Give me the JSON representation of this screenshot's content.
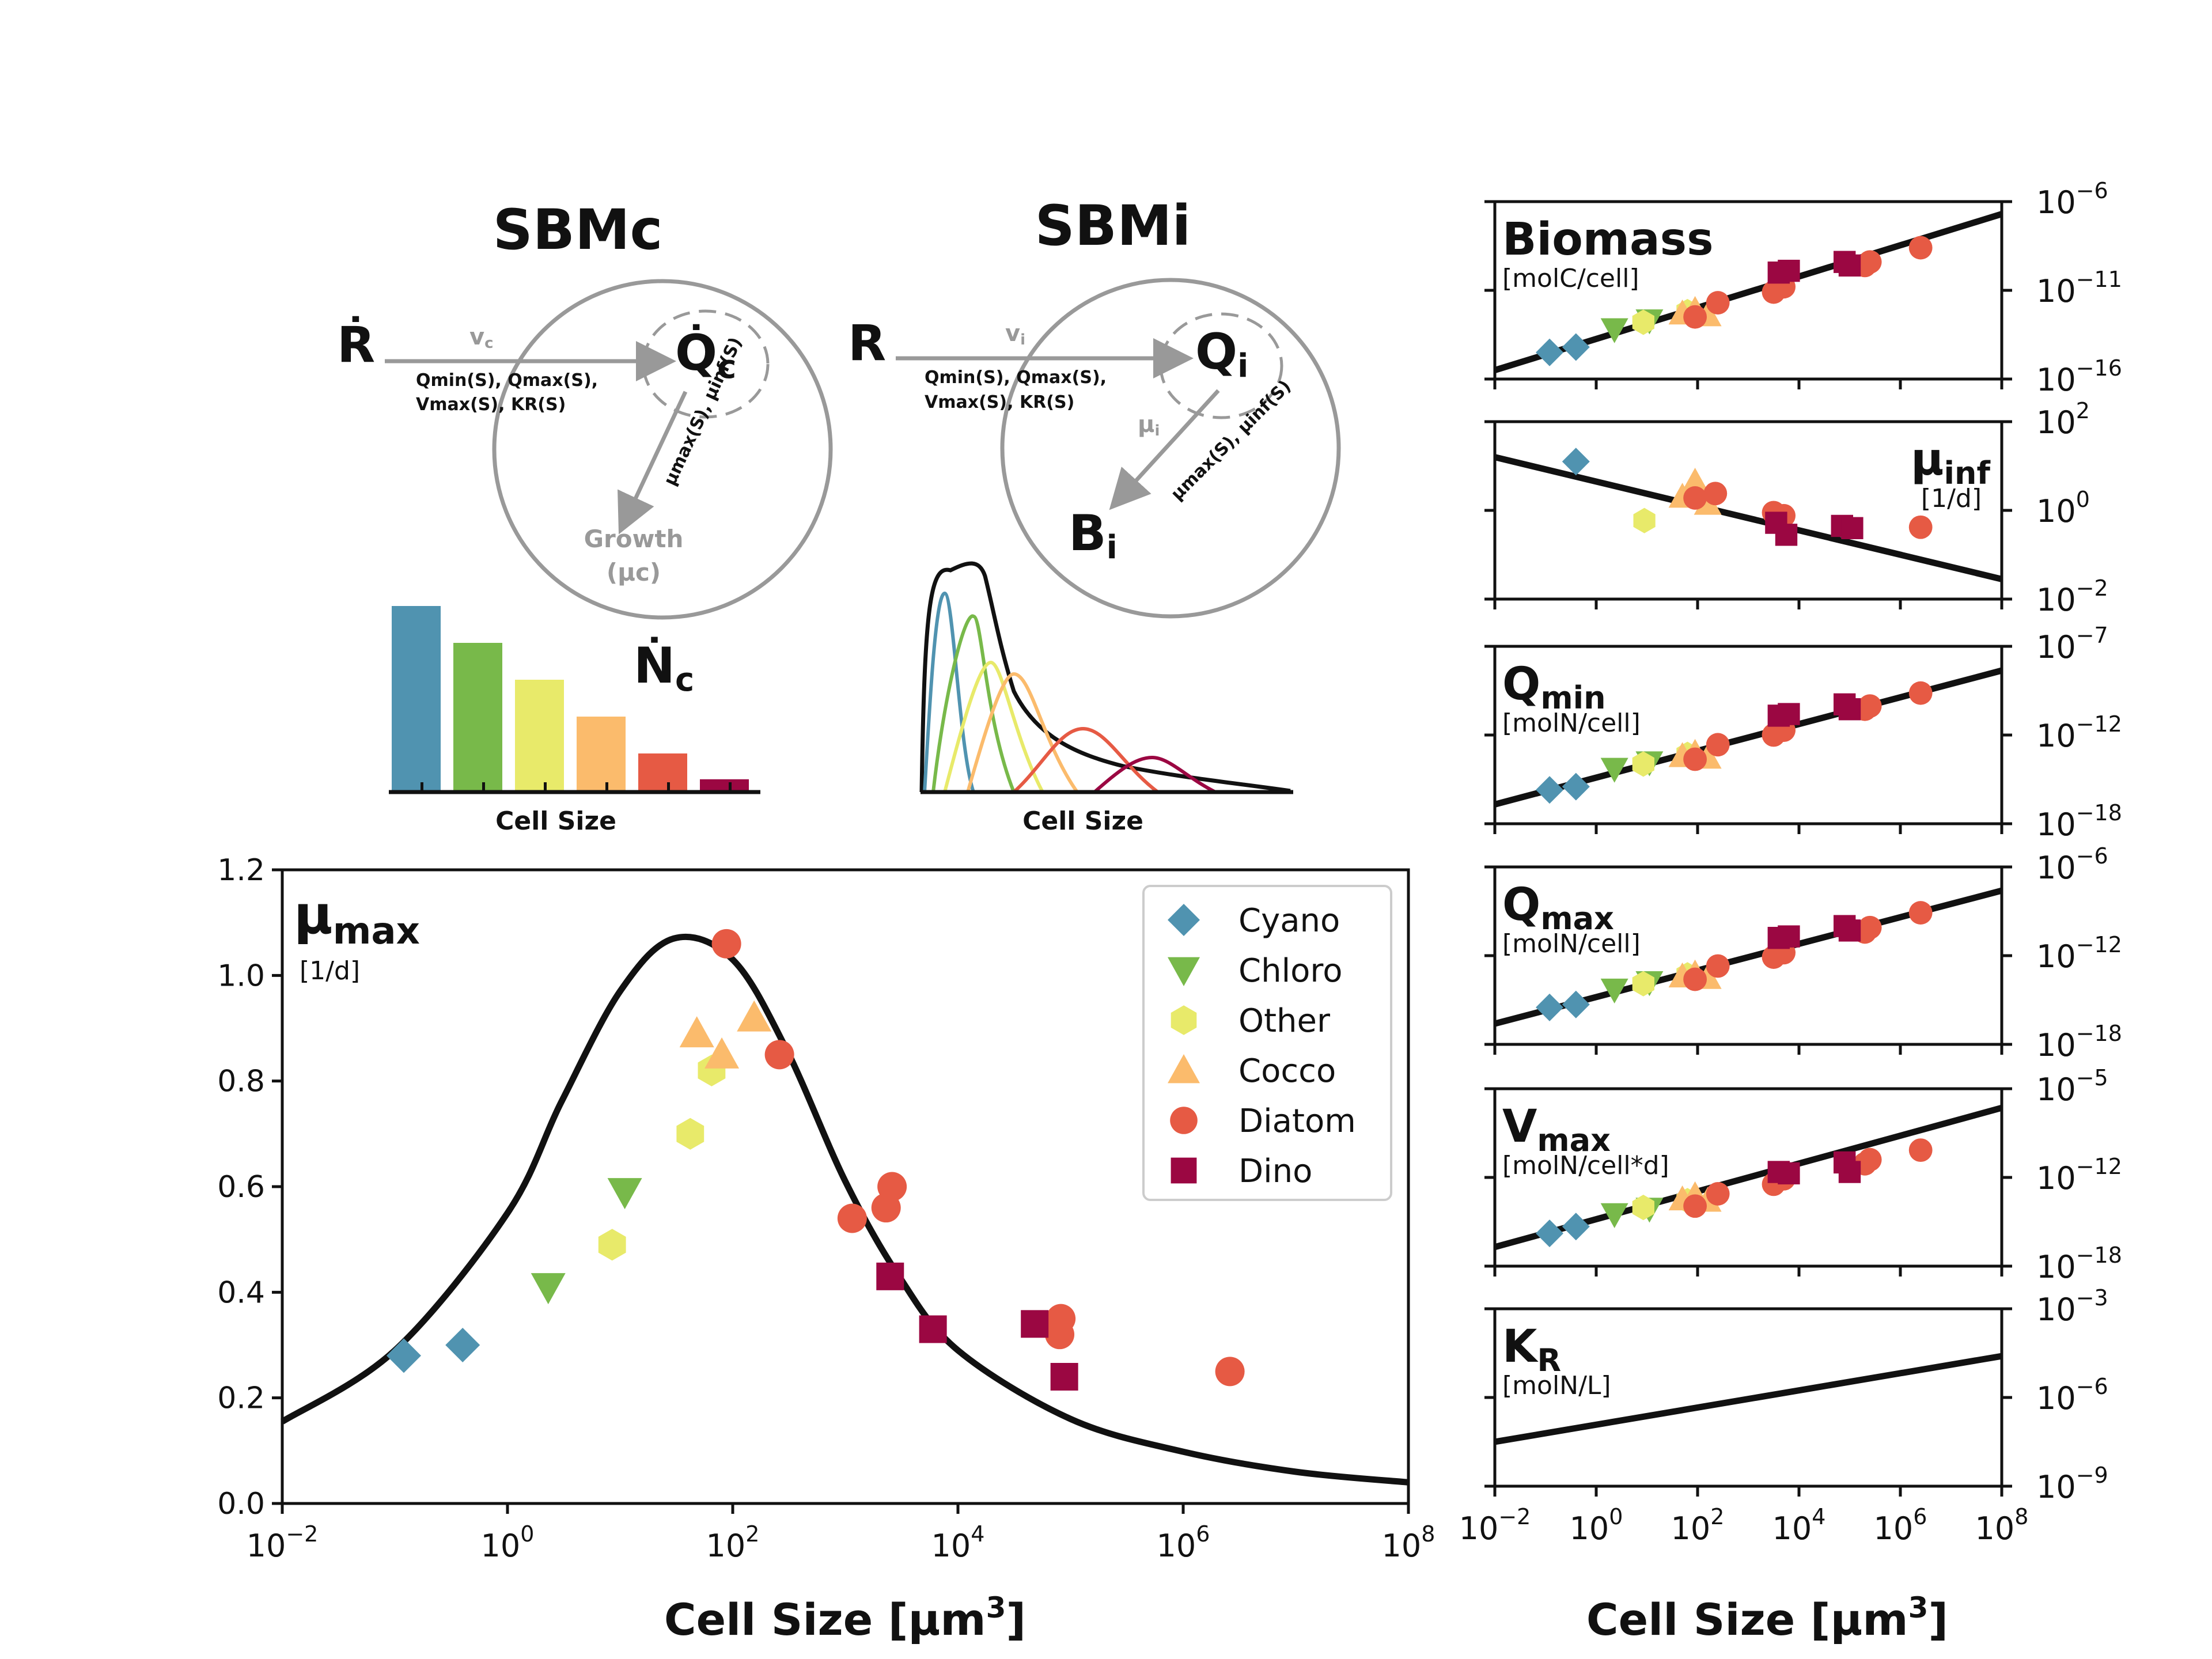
{
  "colors": {
    "Cyano": "#5093b0",
    "Chloro": "#78b94a",
    "Other": "#e8ea6a",
    "Cocco": "#fbbb6c",
    "Diatom": "#e65a44",
    "Dino": "#9b0742",
    "gray": "#999999",
    "black": "#111111"
  },
  "markers": {
    "Cyano": "diamond",
    "Chloro": "triangle-down",
    "Other": "hexagon",
    "Cocco": "triangle-up",
    "Diatom": "circle",
    "Dino": "square"
  },
  "schematic": {
    "sbmc": {
      "title": "SBMc",
      "r_label": "Ṙ",
      "q_label": "Q̇",
      "q_sub": "c",
      "v_label": "v",
      "v_sub": "c",
      "params_line1": "Qmin(S), Qmax(S),",
      "params_line2": "Vmax(S), KR(S)",
      "mu_diag": "μmax(S), μinf(S)",
      "growth_line1": "Growth",
      "growth_line2": "(μc)",
      "n_label": "Ṅ",
      "n_sub": "c",
      "xlabel": "Cell Size",
      "bars": [
        1.0,
        0.8,
        0.6,
        0.4,
        0.2,
        0.06
      ]
    },
    "sbmi": {
      "title": "SBMi",
      "r_label": "R",
      "q_label": "Q",
      "q_sub": "i",
      "v_label": "v",
      "v_sub": "i",
      "params_line1": "Qmin(S), Qmax(S),",
      "params_line2": "Vmax(S), KR(S)",
      "mu_label": "μ",
      "mu_sub": "i",
      "mu_diag": "μmax(S), μinf(S)",
      "b_label": "B",
      "b_sub": "i",
      "xlabel": "Cell Size"
    }
  },
  "main_chart": {
    "title": "μ",
    "title_sub": "max",
    "unit": "[1/d]",
    "xlabel": "Cell Size [μm³]",
    "yticks": [
      "0.0",
      "0.2",
      "0.4",
      "0.6",
      "0.8",
      "1.0",
      "1.2"
    ],
    "xtick_exponents": [
      "-2",
      "0",
      "2",
      "4",
      "6",
      "8"
    ],
    "legend": [
      "Cyano",
      "Chloro",
      "Other",
      "Cocco",
      "Diatom",
      "Dino"
    ]
  },
  "right_panels": [
    {
      "title": "Biomass",
      "title_sub": "",
      "unit": "[molC/cell]",
      "yticks": [
        "-6",
        "-11",
        "-16"
      ]
    },
    {
      "title": "μ",
      "title_sub": "inf",
      "unit": "[1/d]",
      "yticks": [
        "2",
        "0",
        "-2"
      ]
    },
    {
      "title": "Q",
      "title_sub": "min",
      "unit": "[molN/cell]",
      "yticks": [
        "-7",
        "-12",
        "-18"
      ]
    },
    {
      "title": "Q",
      "title_sub": "max",
      "unit": "[molN/cell]",
      "yticks": [
        "-6",
        "-12",
        "-18"
      ]
    },
    {
      "title": "V",
      "title_sub": "max",
      "unit": "[molN/cell*d]",
      "yticks": [
        "-5",
        "-12",
        "-18"
      ]
    },
    {
      "title": "K",
      "title_sub": "R",
      "unit": "[molN/L]",
      "yticks": [
        "-3",
        "-6",
        "-9"
      ]
    }
  ],
  "right_xlabel": "Cell Size [μm³]",
  "right_xtick_exponents": [
    "-2",
    "0",
    "2",
    "4",
    "6",
    "8"
  ],
  "chart_data": [
    {
      "type": "scatter",
      "title": "μmax [1/d]",
      "xlabel": "Cell Size [μm³]",
      "xscale": "log",
      "xlim": [
        0.01,
        100000000
      ],
      "ylim": [
        0,
        1.2
      ],
      "legend_position": "top-right",
      "fit_curve": {
        "x": [
          0.01,
          0.1,
          1,
          3,
          10,
          30,
          100,
          300,
          1000,
          3000,
          10000,
          100000,
          1000000,
          10000000,
          100000000
        ],
        "y": [
          0.155,
          0.29,
          0.55,
          0.76,
          0.97,
          1.07,
          1.03,
          0.86,
          0.61,
          0.43,
          0.29,
          0.16,
          0.098,
          0.06,
          0.04
        ]
      },
      "series": [
        {
          "name": "Cyano",
          "points": [
            [
              0.12,
              0.28
            ],
            [
              0.4,
              0.3
            ]
          ]
        },
        {
          "name": "Chloro",
          "points": [
            [
              2.3,
              0.41
            ],
            [
              11,
              0.59
            ]
          ]
        },
        {
          "name": "Other",
          "points": [
            [
              8.5,
              0.49
            ],
            [
              42,
              0.7
            ],
            [
              65,
              0.82
            ]
          ]
        },
        {
          "name": "Cocco",
          "points": [
            [
              48,
              0.89
            ],
            [
              80,
              0.85
            ],
            [
              155,
              0.92
            ]
          ]
        },
        {
          "name": "Diatom",
          "points": [
            [
              88,
              1.06
            ],
            [
              260,
              0.85
            ],
            [
              1150,
              0.54
            ],
            [
              2300,
              0.56
            ],
            [
              2600,
              0.6
            ],
            [
              80000,
              0.32
            ],
            [
              82000,
              0.35
            ],
            [
              2600000,
              0.25
            ]
          ]
        },
        {
          "name": "Dino",
          "points": [
            [
              2500,
              0.43
            ],
            [
              6000,
              0.33
            ],
            [
              48000,
              0.34
            ],
            [
              88000,
              0.24
            ]
          ]
        }
      ]
    },
    {
      "type": "scatter",
      "title": "Biomass [molC/cell]",
      "xscale": "log",
      "yscale": "log",
      "xlim": [
        0.01,
        100000000
      ],
      "ylim_exp": [
        -16,
        -6
      ],
      "fit_line_log10": [
        [
          -2,
          -15.5
        ],
        [
          8,
          -6.7
        ]
      ],
      "series": [
        {
          "name": "Cyano",
          "log10_points": [
            [
              -0.92,
              -14.5
            ],
            [
              -0.4,
              -14.2
            ]
          ]
        },
        {
          "name": "Chloro",
          "log10_points": [
            [
              0.36,
              -13.2
            ],
            [
              1.05,
              -12.7
            ]
          ]
        },
        {
          "name": "Other",
          "log10_points": [
            [
              0.93,
              -12.8
            ],
            [
              1.8,
              -12.2
            ]
          ]
        },
        {
          "name": "Cocco",
          "log10_points": [
            [
              1.7,
              -12.3
            ],
            [
              1.95,
              -12.1
            ],
            [
              2.2,
              -12.4
            ]
          ]
        },
        {
          "name": "Diatom",
          "log10_points": [
            [
              1.95,
              -12.5
            ],
            [
              2.4,
              -11.7
            ],
            [
              3.5,
              -11.1
            ],
            [
              3.7,
              -10.8
            ],
            [
              5.3,
              -9.6
            ],
            [
              5.4,
              -9.4
            ],
            [
              6.4,
              -8.6
            ]
          ]
        },
        {
          "name": "Dino",
          "log10_points": [
            [
              3.6,
              -10.0
            ],
            [
              3.8,
              -9.9
            ],
            [
              4.9,
              -9.4
            ],
            [
              5.0,
              -9.6
            ]
          ]
        }
      ]
    },
    {
      "type": "scatter",
      "title": "μinf [1/d]",
      "xscale": "log",
      "yscale": "log",
      "xlim": [
        0.01,
        100000000
      ],
      "ylim_exp": [
        -2,
        2
      ],
      "fit_line_log10": [
        [
          -2,
          1.2
        ],
        [
          8,
          -1.55
        ]
      ],
      "series": [
        {
          "name": "Cyano",
          "log10_points": [
            [
              -0.4,
              1.1
            ]
          ]
        },
        {
          "name": "Other",
          "log10_points": [
            [
              0.95,
              -0.23
            ]
          ]
        },
        {
          "name": "Cocco",
          "log10_points": [
            [
              1.7,
              0.31
            ],
            [
              1.95,
              0.65
            ],
            [
              2.2,
              0.15
            ]
          ]
        },
        {
          "name": "Diatom",
          "log10_points": [
            [
              1.95,
              0.28
            ],
            [
              2.35,
              0.38
            ],
            [
              3.5,
              -0.05
            ],
            [
              3.7,
              -0.12
            ],
            [
              6.4,
              -0.38
            ]
          ]
        },
        {
          "name": "Dino",
          "log10_points": [
            [
              3.55,
              -0.28
            ],
            [
              3.75,
              -0.55
            ],
            [
              4.85,
              -0.35
            ],
            [
              5.05,
              -0.4
            ]
          ]
        }
      ]
    },
    {
      "type": "scatter",
      "title": "Qmin [molN/cell]",
      "xscale": "log",
      "yscale": "log",
      "xlim": [
        0.01,
        100000000
      ],
      "ylim_exp": [
        -18,
        -7
      ],
      "fit_line_log10": [
        [
          -2,
          -16.8
        ],
        [
          8,
          -8.5
        ]
      ],
      "series": [
        {
          "name": "Cyano",
          "log10_points": [
            [
              -0.92,
              -15.9
            ],
            [
              -0.4,
              -15.7
            ]
          ]
        },
        {
          "name": "Chloro",
          "log10_points": [
            [
              0.36,
              -14.6
            ],
            [
              1.05,
              -14.2
            ]
          ]
        },
        {
          "name": "Other",
          "log10_points": [
            [
              0.93,
              -14.3
            ],
            [
              1.8,
              -13.7
            ]
          ]
        },
        {
          "name": "Cocco",
          "log10_points": [
            [
              1.7,
              -13.8
            ],
            [
              1.95,
              -13.6
            ],
            [
              2.2,
              -13.9
            ]
          ]
        },
        {
          "name": "Diatom",
          "log10_points": [
            [
              1.95,
              -14.0
            ],
            [
              2.4,
              -13.1
            ],
            [
              3.5,
              -12.5
            ],
            [
              3.7,
              -12.2
            ],
            [
              5.3,
              -10.9
            ],
            [
              5.4,
              -10.7
            ],
            [
              6.4,
              -9.9
            ]
          ]
        },
        {
          "name": "Dino",
          "log10_points": [
            [
              3.6,
              -11.3
            ],
            [
              3.8,
              -11.2
            ],
            [
              4.9,
              -10.6
            ],
            [
              5.0,
              -10.9
            ]
          ]
        }
      ]
    },
    {
      "type": "scatter",
      "title": "Qmax [molN/cell]",
      "xscale": "log",
      "yscale": "log",
      "xlim": [
        0.01,
        100000000
      ],
      "ylim_exp": [
        -18,
        -6
      ],
      "fit_line_log10": [
        [
          -2,
          -16.6
        ],
        [
          8,
          -7.6
        ]
      ],
      "series": [
        {
          "name": "Cyano",
          "log10_points": [
            [
              -0.92,
              -15.5
            ],
            [
              -0.4,
              -15.3
            ]
          ]
        },
        {
          "name": "Chloro",
          "log10_points": [
            [
              0.36,
              -14.3
            ],
            [
              1.05,
              -13.8
            ]
          ]
        },
        {
          "name": "Other",
          "log10_points": [
            [
              0.93,
              -13.9
            ],
            [
              1.8,
              -13.3
            ]
          ]
        },
        {
          "name": "Cocco",
          "log10_points": [
            [
              1.7,
              -13.4
            ],
            [
              1.95,
              -13.2
            ],
            [
              2.2,
              -13.5
            ]
          ]
        },
        {
          "name": "Diatom",
          "log10_points": [
            [
              1.95,
              -13.6
            ],
            [
              2.4,
              -12.7
            ],
            [
              3.5,
              -12.1
            ],
            [
              3.7,
              -11.8
            ],
            [
              5.3,
              -10.4
            ],
            [
              5.4,
              -10.1
            ],
            [
              6.4,
              -9.1
            ]
          ]
        },
        {
          "name": "Dino",
          "log10_points": [
            [
              3.6,
              -10.8
            ],
            [
              3.8,
              -10.7
            ],
            [
              4.9,
              -10.0
            ],
            [
              5.0,
              -10.3
            ]
          ]
        }
      ]
    },
    {
      "type": "scatter",
      "title": "Vmax [molN/cell*d]",
      "xscale": "log",
      "yscale": "log",
      "xlim": [
        0.01,
        100000000
      ],
      "ylim_exp": [
        -18,
        -5
      ],
      "fit_line_log10": [
        [
          -2,
          -16.6
        ],
        [
          8,
          -6.4
        ]
      ],
      "series": [
        {
          "name": "Cyano",
          "log10_points": [
            [
              -0.92,
              -15.6
            ],
            [
              -0.4,
              -15.1
            ]
          ]
        },
        {
          "name": "Chloro",
          "log10_points": [
            [
              0.36,
              -14.2
            ],
            [
              1.05,
              -13.8
            ]
          ]
        },
        {
          "name": "Other",
          "log10_points": [
            [
              0.93,
              -13.7
            ],
            [
              1.8,
              -13.2
            ]
          ]
        },
        {
          "name": "Cocco",
          "log10_points": [
            [
              1.7,
              -13.1
            ],
            [
              1.95,
              -12.8
            ],
            [
              2.2,
              -13.2
            ]
          ]
        },
        {
          "name": "Diatom",
          "log10_points": [
            [
              1.95,
              -13.6
            ],
            [
              2.4,
              -12.7
            ],
            [
              3.5,
              -12.0
            ],
            [
              3.7,
              -11.6
            ],
            [
              5.3,
              -10.5
            ],
            [
              5.4,
              -10.2
            ],
            [
              6.4,
              -9.5
            ]
          ]
        },
        {
          "name": "Dino",
          "log10_points": [
            [
              3.6,
              -11.1
            ],
            [
              3.8,
              -11.2
            ],
            [
              4.9,
              -10.4
            ],
            [
              5.0,
              -11.1
            ]
          ]
        }
      ]
    },
    {
      "type": "line",
      "title": "KR [molN/L]",
      "xscale": "log",
      "yscale": "log",
      "xlim": [
        0.01,
        100000000
      ],
      "ylim_exp": [
        -9,
        -3
      ],
      "fit_line_log10": [
        [
          -2,
          -7.5
        ],
        [
          8,
          -4.6
        ]
      ]
    }
  ]
}
